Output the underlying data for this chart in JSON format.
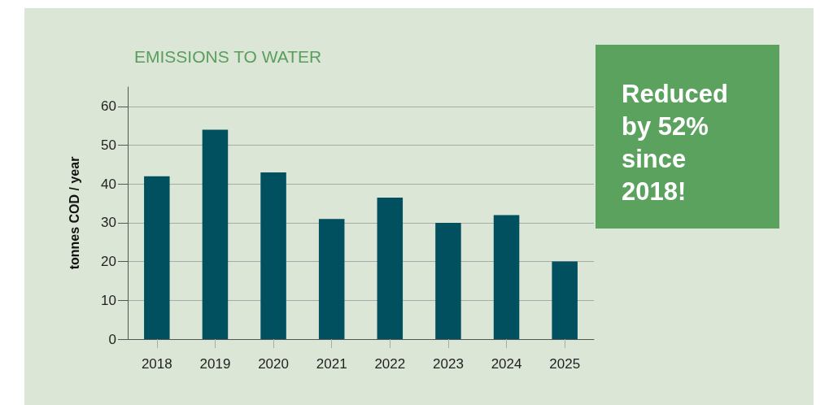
{
  "chart_data": {
    "type": "bar",
    "title": "EMISSIONS TO WATER",
    "ylabel": "tonnes COD / year",
    "categories": [
      "2018",
      "2019",
      "2020",
      "2021",
      "2022",
      "2023",
      "2024",
      "2025"
    ],
    "values": [
      42,
      54,
      43,
      31,
      36.5,
      30,
      32,
      20
    ],
    "color": "#00505f",
    "ylim": [
      0,
      65
    ],
    "yticks": [
      0,
      10,
      20,
      30,
      40,
      50,
      60
    ],
    "grid": "y",
    "annotations": [
      "Reduced by 52% since 2018!"
    ]
  }
}
